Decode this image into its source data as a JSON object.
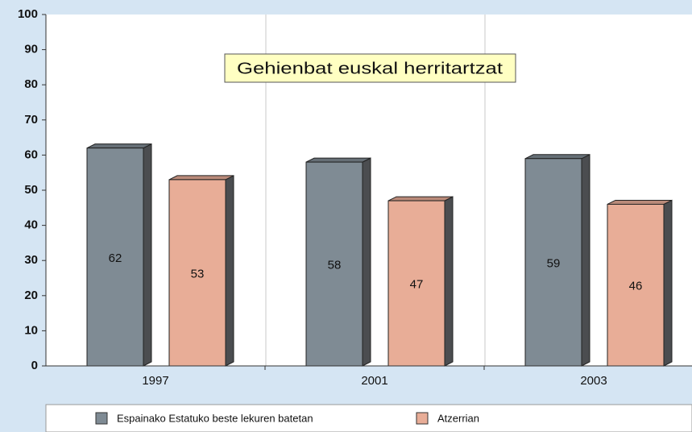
{
  "chart_data": {
    "type": "bar",
    "title": "Gehienbat euskal herritartzat",
    "categories": [
      "1997",
      "2001",
      "2003"
    ],
    "series": [
      {
        "name": "Espainako Estatuko beste lekuren batetan",
        "color": "#7f8b94",
        "values": [
          62,
          58,
          59
        ]
      },
      {
        "name": "Atzerrian",
        "color": "#e8ad97",
        "values": [
          53,
          47,
          46
        ]
      }
    ],
    "ylim": [
      0,
      100
    ],
    "yticks": [
      0,
      10,
      20,
      30,
      40,
      50,
      60,
      70,
      80,
      90,
      100
    ],
    "legend": "bottom"
  }
}
